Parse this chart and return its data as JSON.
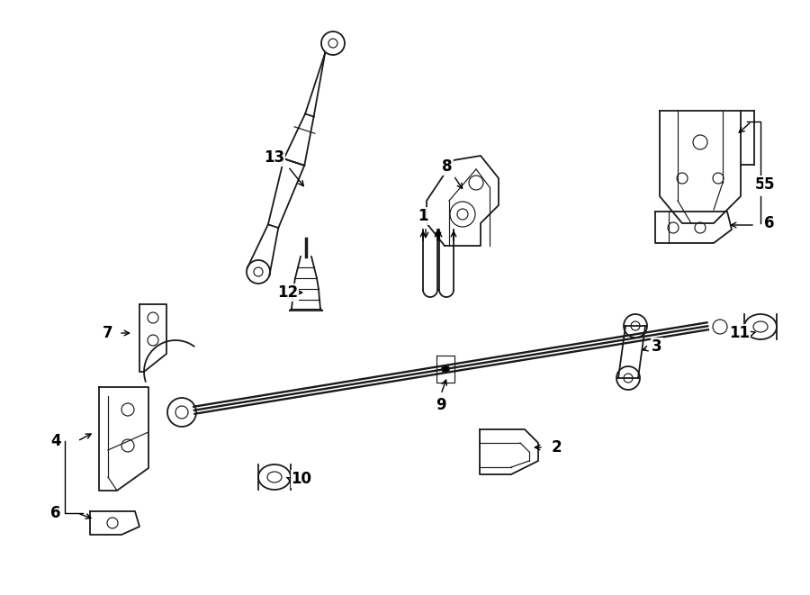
{
  "bg_color": "#ffffff",
  "line_color": "#1a1a1a",
  "fig_w": 9.0,
  "fig_h": 6.61,
  "dpi": 100,
  "lw": 1.3,
  "lw_thin": 0.85
}
